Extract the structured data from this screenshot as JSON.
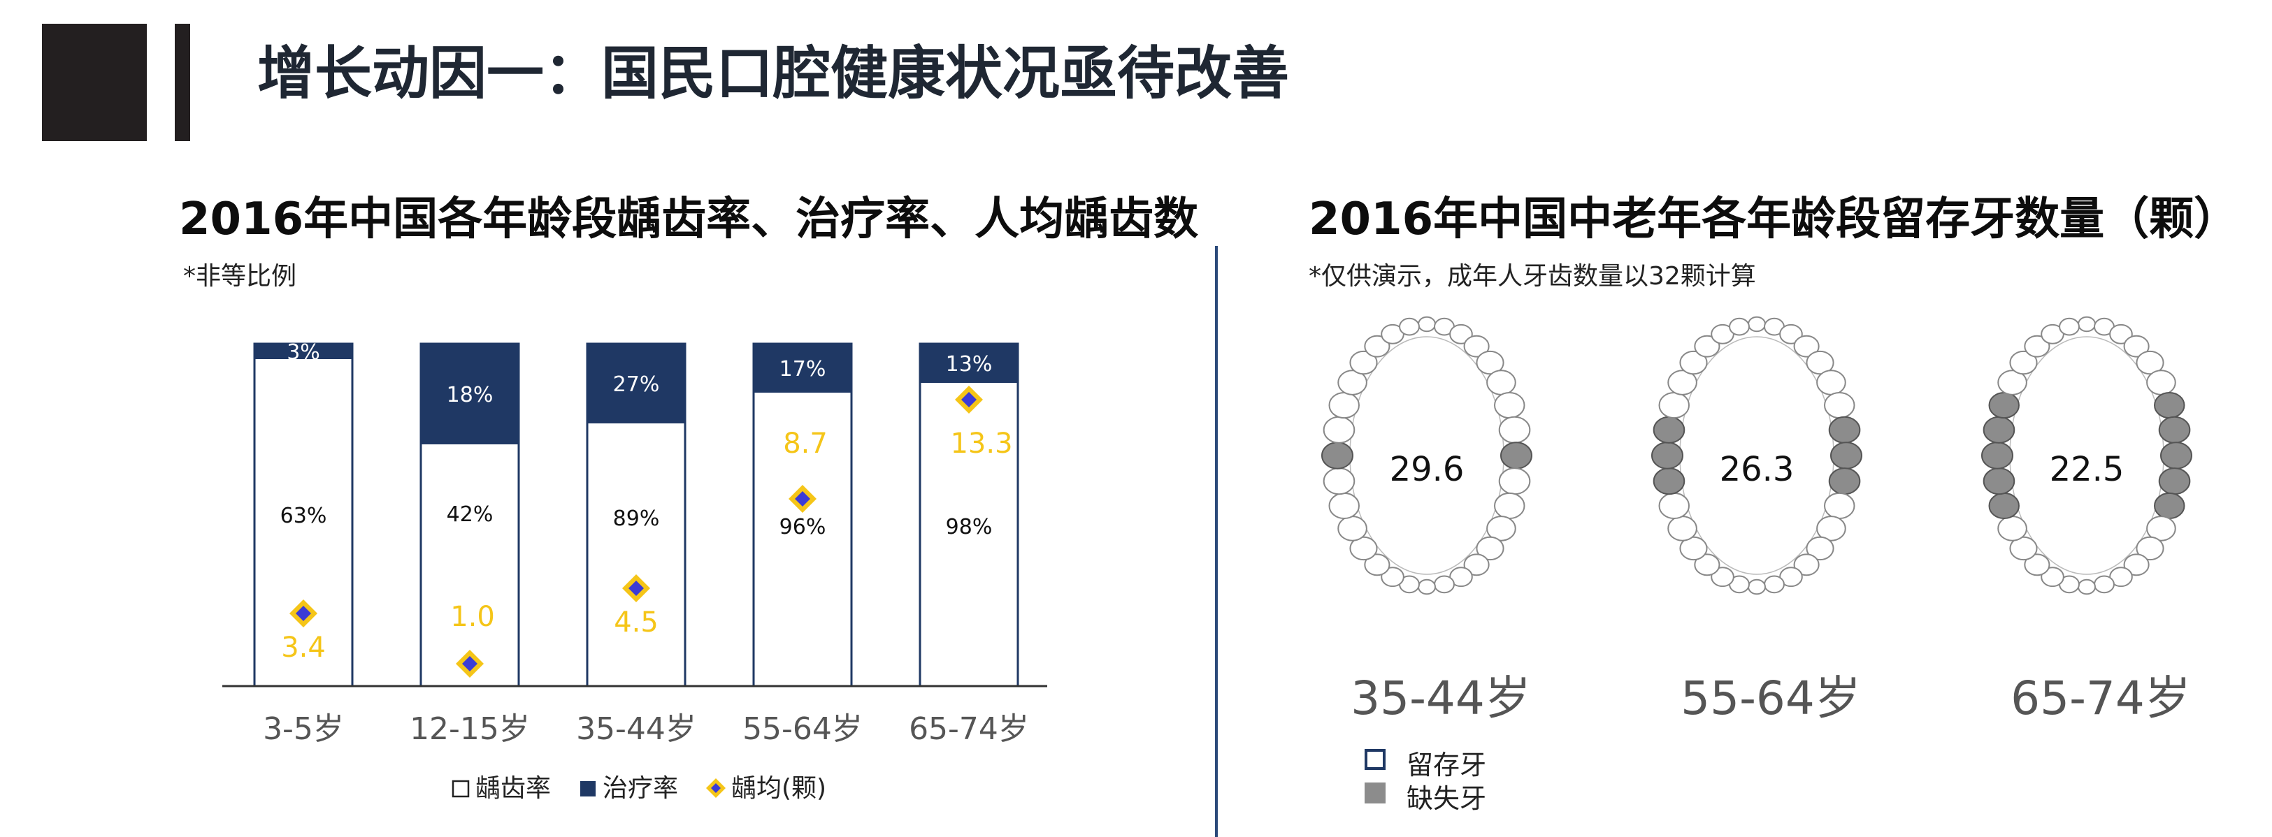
{
  "page_title": "增长动因一：国民口腔健康状况亟待改善",
  "left_section": {
    "title": "2016年中国各年龄段龋齿率、治疗率、人均龋齿数",
    "note": "*非等比例"
  },
  "right_section": {
    "title": "2016年中国中老年各年龄段留存牙数量（颗）",
    "note": "*仅供演示，成年人牙齿数量以32颗计算",
    "jaws": [
      {
        "age": "35-44岁",
        "value": "29.6",
        "retained": 29.6
      },
      {
        "age": "55-64岁",
        "value": "26.3",
        "retained": 26.3
      },
      {
        "age": "65-74岁",
        "value": "22.5",
        "retained": 22.5
      }
    ],
    "legend": {
      "retained": "留存牙",
      "missing": "缺失牙"
    },
    "colors": {
      "retained": "#ffffff",
      "missing": "#8c8c8c",
      "outline": "#1f3864"
    }
  },
  "chart_data": {
    "type": "bar",
    "categories": [
      "3-5岁",
      "12-15岁",
      "35-44岁",
      "55-64岁",
      "65-74岁"
    ],
    "series": [
      {
        "name": "龋齿率",
        "values": [
          63,
          42,
          89,
          96,
          98
        ],
        "labels": [
          "63%",
          "42%",
          "89%",
          "96%",
          "98%"
        ],
        "color": "#ffffff"
      },
      {
        "name": "治疗率",
        "values": [
          3,
          18,
          27,
          17,
          13
        ],
        "labels": [
          "3%",
          "18%",
          "27%",
          "17%",
          "13%"
        ],
        "color": "#1f3864"
      },
      {
        "name": "龋均(颗)",
        "values": [
          3.4,
          1.0,
          4.5,
          8.7,
          13.3
        ],
        "labels": [
          "3.4",
          "1.0",
          "4.5",
          "8.7",
          "13.3"
        ],
        "color": "#f5c518"
      }
    ],
    "legend_position": "bottom",
    "grid": false
  }
}
